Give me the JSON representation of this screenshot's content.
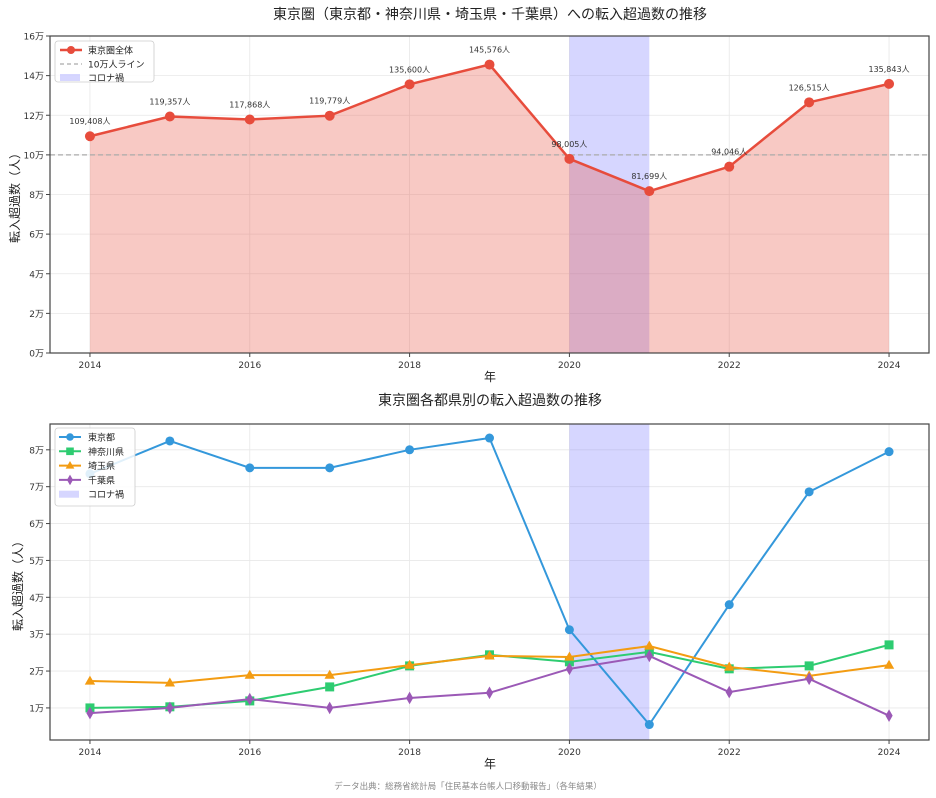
{
  "chart_data": [
    {
      "type": "area",
      "title": "東京圏（東京都・神奈川県・埼玉県・千葉県）への転入超過数の推移",
      "xlabel": "年",
      "ylabel": "転入超過数（人）",
      "x": [
        2014,
        2015,
        2016,
        2017,
        2018,
        2019,
        2020,
        2021,
        2022,
        2023,
        2024
      ],
      "series": [
        {
          "name": "東京圏全体",
          "color": "#e74c3c",
          "marker": "circle",
          "values": [
            109408,
            119357,
            117868,
            119779,
            135600,
            145576,
            98005,
            81699,
            94046,
            126515,
            135843
          ],
          "labels": [
            "109,408人",
            "119,357人",
            "117,868人",
            "119,779人",
            "135,600人",
            "145,576人",
            "98,005人",
            "81,699人",
            "94,046人",
            "126,515人",
            "135,843人"
          ]
        }
      ],
      "reference_line": {
        "name": "10万人ライン",
        "value": 100000,
        "color": "#aaaaaa",
        "style": "dashed"
      },
      "shaded_region": {
        "name": "コロナ禍",
        "x_start": 2020,
        "x_end": 2021,
        "color": "#7777ff"
      },
      "yticks": [
        0,
        20000,
        40000,
        60000,
        80000,
        100000,
        120000,
        140000,
        160000
      ],
      "ytick_labels": [
        "0万",
        "2万",
        "4万",
        "6万",
        "8万",
        "10万",
        "12万",
        "14万",
        "16万"
      ],
      "xticks": [
        2014,
        2016,
        2018,
        2020,
        2022,
        2024
      ],
      "ylim": [
        0,
        160000
      ],
      "xlim": [
        2013.5,
        2024.5
      ],
      "grid": true,
      "legend_position": "upper left"
    },
    {
      "type": "line",
      "title": "東京圏各都県別の転入超過数の推移",
      "xlabel": "年",
      "ylabel": "転入超過数（人）",
      "x": [
        2014,
        2015,
        2016,
        2017,
        2018,
        2019,
        2020,
        2021,
        2022,
        2023,
        2024
      ],
      "series": [
        {
          "name": "東京都",
          "color": "#3498db",
          "marker": "circle",
          "values": [
            73500,
            82400,
            75100,
            75100,
            80000,
            83200,
            31200,
            5500,
            38000,
            68600,
            79500
          ]
        },
        {
          "name": "神奈川県",
          "color": "#2ecc71",
          "marker": "square",
          "values": [
            10000,
            10300,
            11900,
            15700,
            21400,
            24400,
            22500,
            25200,
            20600,
            21400,
            27100
          ]
        },
        {
          "name": "埼玉県",
          "color": "#f39c12",
          "marker": "triangle",
          "values": [
            17300,
            16800,
            18900,
            18900,
            21600,
            24100,
            23800,
            26800,
            21100,
            18700,
            21600
          ]
        },
        {
          "name": "千葉県",
          "color": "#9b59b6",
          "marker": "diamond",
          "values": [
            8600,
            10000,
            12400,
            10000,
            12700,
            14100,
            20600,
            24100,
            14300,
            17900,
            7900
          ]
        }
      ],
      "shaded_region": {
        "name": "コロナ禍",
        "x_start": 2020,
        "x_end": 2021,
        "color": "#7777ff"
      },
      "yticks": [
        10000,
        20000,
        30000,
        40000,
        50000,
        60000,
        70000,
        80000
      ],
      "ytick_labels": [
        "1万",
        "2万",
        "3万",
        "4万",
        "5万",
        "6万",
        "7万",
        "8万"
      ],
      "xticks": [
        2014,
        2016,
        2018,
        2020,
        2022,
        2024
      ],
      "ylim": [
        1300,
        87000
      ],
      "xlim": [
        2013.5,
        2024.5
      ],
      "grid": true,
      "legend_position": "upper left"
    }
  ],
  "footer": {
    "source": "データ出典：総務省統計局「住民基本台帳人口移動報告」（各年結果）"
  },
  "legend_top": {
    "items": [
      "東京圏全体",
      "10万人ライン",
      "コロナ禍"
    ]
  },
  "legend_bottom": {
    "items": [
      "東京都",
      "神奈川県",
      "埼玉県",
      "千葉県",
      "コロナ禍"
    ]
  }
}
